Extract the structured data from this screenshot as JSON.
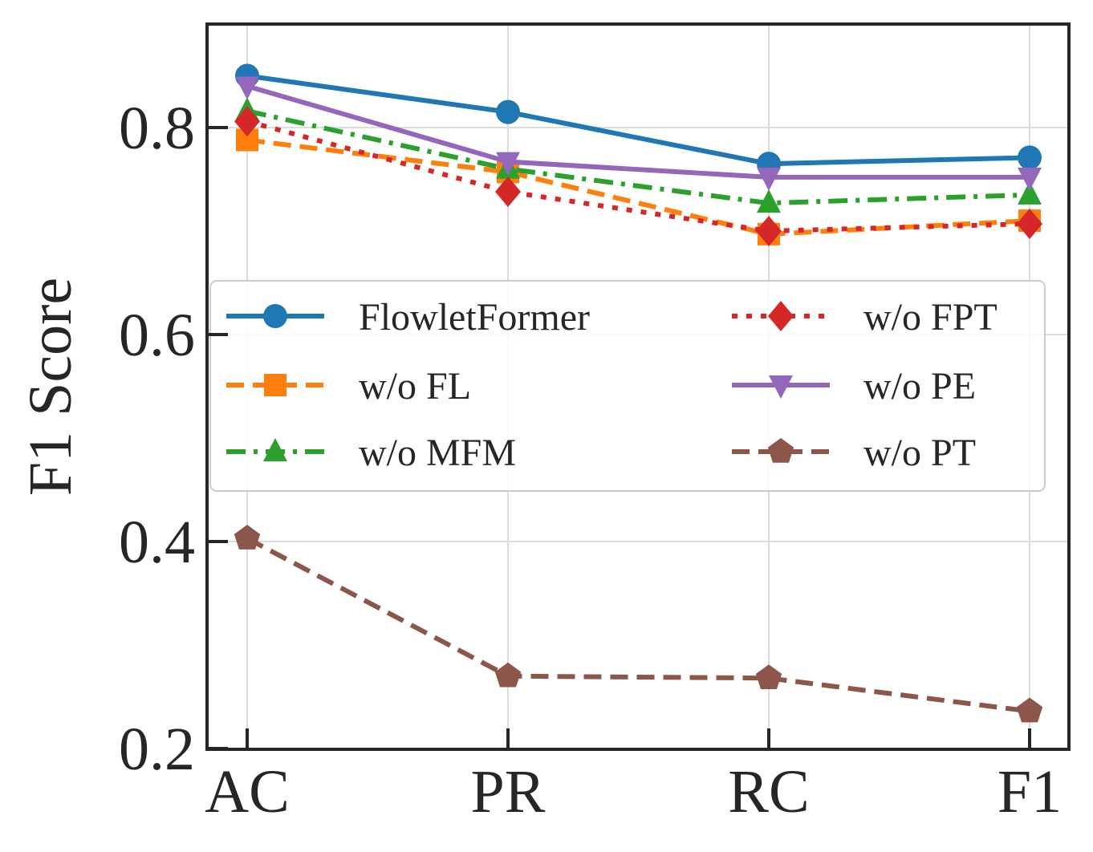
{
  "chart_data": {
    "type": "line",
    "title": "",
    "xlabel": "",
    "ylabel": "F1 Score",
    "categories": [
      "AC",
      "PR",
      "RC",
      "F1"
    ],
    "ylim": [
      0.2,
      0.9
    ],
    "yticks": [
      0.2,
      0.4,
      0.6,
      0.8
    ],
    "ytick_labels": [
      "0.2",
      "0.4",
      "0.6",
      "0.8"
    ],
    "grid": true,
    "legend_position": "center",
    "legend_columns": 2,
    "series": [
      {
        "name": "FlowletFormer",
        "values": [
          0.85,
          0.815,
          0.765,
          0.771
        ],
        "color": "#1f77b4",
        "dash": "solid",
        "marker": "circle"
      },
      {
        "name": "w/o FL",
        "values": [
          0.788,
          0.757,
          0.697,
          0.71
        ],
        "color": "#ff7f0e",
        "dash": "dashed",
        "marker": "square"
      },
      {
        "name": "w/o MFM",
        "values": [
          0.816,
          0.76,
          0.727,
          0.735
        ],
        "color": "#2ca02c",
        "dash": "dashdot",
        "marker": "triangle-up"
      },
      {
        "name": "w/o FPT",
        "values": [
          0.806,
          0.738,
          0.7,
          0.707
        ],
        "color": "#d62728",
        "dash": "dotted",
        "marker": "diamond"
      },
      {
        "name": "w/o PE",
        "values": [
          0.84,
          0.767,
          0.752,
          0.752
        ],
        "color": "#9467bd",
        "dash": "solid",
        "marker": "triangle-down"
      },
      {
        "name": "w/o PT",
        "values": [
          0.403,
          0.27,
          0.268,
          0.236
        ],
        "color": "#8c564b",
        "dash": "dashed",
        "marker": "pentagon"
      }
    ]
  }
}
